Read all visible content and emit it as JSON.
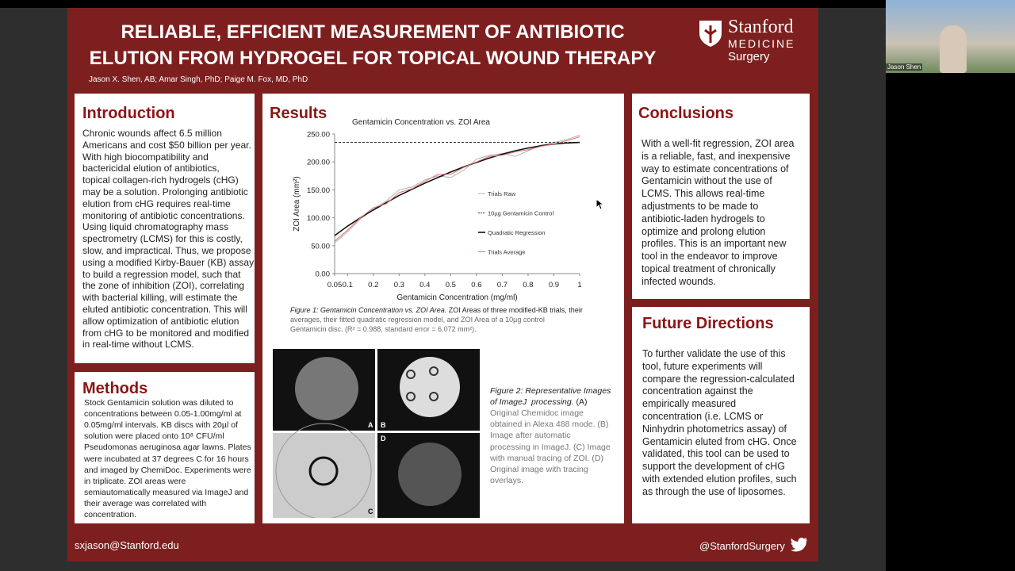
{
  "header": {
    "title_lines": [
      "RELIABLE, EFFICIENT MEASUREMENT OF ANTIBIOTIC",
      "ELUTION FROM HYDROGEL FOR TOPICAL WOUND THERAPY"
    ],
    "authors": "Jason X. Shen, AB; Amar Singh, PhD; Paige M. Fox, MD, PhD",
    "logo": [
      "Stanford",
      "MEDICINE",
      "Surgery"
    ]
  },
  "introduction": {
    "heading": "Introduction",
    "lines": [
      "Chronic wounds affect 6.5 million",
      "Americans and cost $50 billion per year.",
      "With high biocompatibility and",
      "bactericidal elution of antibiotics,",
      "topical collagen-rich hydrogels (cHG)",
      "may be a solution. Prolonging antibiotic",
      "elution from cHG requires real-time",
      "monitoring of antibiotic concentrations.",
      "Using liquid chromatography mass",
      "spectrometry (LCMS) for this is costly,",
      "slow, and impractical. Thus, we propose",
      "using a modified Kirby-Bauer (KB) assay",
      "to build a regression model, such that",
      "the zone of inhibition (ZOI), correlating",
      "with bacterial killing, will estimate the",
      "eluted antibiotic concentration. This will",
      "allow optimization of antibiotic elution",
      "from cHG to be monitored and modified",
      "in real-time without LCMS."
    ]
  },
  "methods": {
    "heading": "Methods",
    "lines": [
      "Stock Gentamicin solution was diluted to",
      "concentrations between 0.05-1.00mg/ml at",
      "0.05mg/ml intervals. KB discs with 20µl of",
      "solution were placed onto 10⁸ CFU/ml",
      "Pseudomonas aeruginosa agar lawns. Plates",
      "were incubated at 37 degrees C for 16 hours",
      "and imaged by ChemiDoc. Experiments were",
      "in triplicate. ZOI areas were",
      "semiautomatically measured via ImageJ and",
      "their average was correlated with",
      "concentration."
    ]
  },
  "results": {
    "heading": "Results",
    "chart": {
      "type": "line",
      "title": "Gentamicin Concentration vs. ZOI Area",
      "x_label": "Gentamicin Concentration (mg/ml)",
      "y_label": "ZOI Area (mm²)",
      "x": [
        0.05,
        0.1,
        0.15,
        0.2,
        0.25,
        0.3,
        0.35,
        0.4,
        0.45,
        0.5,
        0.55,
        0.6,
        0.65,
        0.7,
        0.75,
        0.8,
        0.85,
        0.9,
        0.95,
        1
      ],
      "series": [
        {
          "name": "Trials Raw",
          "color": "#b0b0b0",
          "dash": false,
          "values": [
            55,
            75,
            98,
            115,
            130,
            150,
            155,
            168,
            175,
            172,
            185,
            205,
            212,
            215,
            210,
            220,
            230,
            235,
            240,
            248
          ]
        },
        {
          "name": "10µg Gentamicin Control",
          "color": "#333333",
          "dash": true,
          "values": [
            235,
            235,
            235,
            235,
            235,
            235,
            235,
            235,
            235,
            235,
            235,
            235,
            235,
            235,
            235,
            235,
            235,
            235,
            235,
            235
          ]
        },
        {
          "name": "Quadratic Regression",
          "color": "#111111",
          "dash": false,
          "values": [
            68,
            85,
            100,
            114,
            127,
            140,
            151,
            162,
            172,
            182,
            191,
            199,
            207,
            214,
            220,
            225,
            229,
            232,
            234,
            235
          ]
        },
        {
          "name": "Trials Average",
          "color": "#e07070",
          "dash": false,
          "values": [
            58,
            78,
            100,
            118,
            125,
            145,
            152,
            165,
            178,
            178,
            190,
            200,
            210,
            212,
            218,
            222,
            228,
            232,
            238,
            245
          ]
        }
      ],
      "xlim": [
        0.05,
        1
      ],
      "xticks": [
        0.05,
        0.1,
        0.2,
        0.3,
        0.4,
        0.5,
        0.6,
        0.7,
        0.8,
        0.9,
        1
      ],
      "ylim": [
        0,
        250
      ],
      "yticks": [
        {
          "value": 0,
          "label": "0.00"
        },
        {
          "value": 50,
          "label": "50.00"
        },
        {
          "value": 100,
          "label": "100.00"
        },
        {
          "value": 150,
          "label": "150.00"
        },
        {
          "value": 200,
          "label": "200.00"
        },
        {
          "value": 250,
          "label": "250.00"
        }
      ]
    },
    "caption1": {
      "label": "Figure 1: Gentamicin Concentration vs. ZOI Area.",
      "lines": [
        " ZOI Areas of three modified-KB trials, their",
        "averages, their fitted quadratic regression model, and ZOI Area of a 10µg control",
        "Gentamicin disc. (R² = 0.988, standard error = 6.072 mm²)."
      ]
    },
    "image_labels": [
      "A",
      "B",
      "C",
      "D"
    ],
    "caption2": {
      "italic_lines": [
        "Figure 2: Representative Images",
        "of ImageJ  processing."
      ],
      "lines": [
        " (A)",
        "Original Chemidoc image",
        "obtained in Alexa 488 mode. (B)",
        "Image after automatic",
        "processing in ImageJ. (C) Image",
        "with manual tracing of ZOI. (D)",
        "Original image with tracing",
        "overlays."
      ]
    }
  },
  "conclusions": {
    "heading": "Conclusions",
    "lines": [
      "With a well-fit regression, ZOI area",
      "is a reliable, fast, and inexpensive",
      "way to estimate concentrations of",
      "Gentamicin without the use of",
      "LCMS. This allows real-time",
      "adjustments to be made to",
      "antibiotic-laden hydrogels to",
      "optimize and prolong elution",
      "profiles. This is an important new",
      "tool in the endeavor to improve",
      "topical treatment of chronically",
      "infected wounds."
    ]
  },
  "future": {
    "heading": "Future Directions",
    "lines": [
      "To further validate the use of this",
      "tool, future experiments will",
      "compare the regression-calculated",
      "concentration against the",
      "empirically measured",
      "concentration (i.e. LCMS or",
      "Ninhydrin photometrics assay) of",
      "Gentamicin eluted from cHG. Once",
      "validated, this tool can be used to",
      "support the development of cHG",
      "with extended elution profiles, such",
      "as through the use of liposomes."
    ]
  },
  "footer": {
    "email": "sxjason@Stanford.edu",
    "handle": "@StanfordSurgery"
  },
  "video": {
    "name": "Jason Shen"
  }
}
